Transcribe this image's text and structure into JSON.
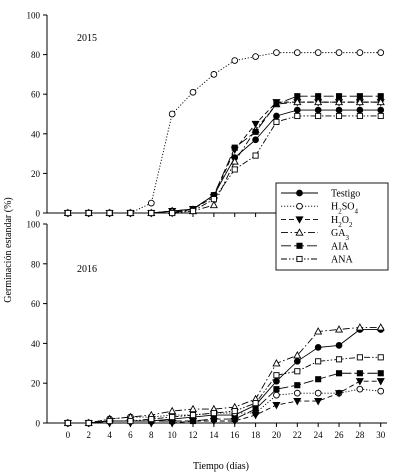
{
  "figure": {
    "ylabel": "Germinación estandar (%)",
    "xlabel": "Tiempo (días)"
  },
  "legend": {
    "placement": "right, between panels",
    "items": [
      {
        "name": "Testigo",
        "marker": "filled-circle",
        "dash": "solid"
      },
      {
        "name": "H2SO4",
        "marker": "open-circle",
        "dash": "dotted"
      },
      {
        "name": "H2O2",
        "marker": "filled-triangle-down",
        "dash": "dashed"
      },
      {
        "name": "GA3",
        "marker": "open-triangle-up",
        "dash": "dash-dot"
      },
      {
        "name": "AIA",
        "marker": "filled-square",
        "dash": "long-dash"
      },
      {
        "name": "ANA",
        "marker": "open-square",
        "dash": "dash-dot-dot"
      }
    ]
  },
  "chart_data": [
    {
      "type": "line",
      "panel_label": "2015",
      "x": [
        0,
        2,
        4,
        6,
        8,
        10,
        12,
        14,
        16,
        18,
        20,
        22,
        24,
        26,
        28,
        30
      ],
      "xticks": [
        0,
        2,
        4,
        6,
        8,
        10,
        12,
        14,
        16,
        18,
        20,
        22,
        24,
        26,
        28,
        30
      ],
      "xlim": [
        -2,
        30.6
      ],
      "ylim": [
        0,
        100
      ],
      "yticks": [
        0,
        20,
        40,
        60,
        80,
        100
      ],
      "grid": false,
      "series": [
        {
          "name": "Testigo",
          "values": [
            0,
            0,
            0,
            0,
            0,
            1,
            2,
            9,
            28,
            37,
            49,
            52,
            52,
            52,
            52,
            52
          ]
        },
        {
          "name": "H2SO4",
          "values": [
            0,
            0,
            0,
            0,
            5,
            50,
            61,
            70,
            77,
            79,
            81,
            81,
            81,
            81,
            81,
            81
          ]
        },
        {
          "name": "H2O2",
          "values": [
            0,
            0,
            0,
            0,
            0,
            1,
            2,
            8,
            32,
            45,
            56,
            56,
            56,
            56,
            56,
            56
          ]
        },
        {
          "name": "GA3",
          "values": [
            0,
            0,
            0,
            0,
            0,
            1,
            1,
            4,
            26,
            42,
            55,
            56,
            56,
            56,
            56,
            56
          ]
        },
        {
          "name": "AIA",
          "values": [
            0,
            0,
            0,
            0,
            0,
            0,
            2,
            9,
            33,
            41,
            55,
            59,
            59,
            59,
            59,
            59
          ]
        },
        {
          "name": "ANA",
          "values": [
            0,
            0,
            0,
            0,
            0,
            0,
            1,
            7,
            22,
            29,
            46,
            49,
            49,
            49,
            49,
            49
          ]
        }
      ]
    },
    {
      "type": "line",
      "panel_label": "2016",
      "x": [
        0,
        2,
        4,
        6,
        8,
        10,
        12,
        14,
        16,
        18,
        20,
        22,
        24,
        26,
        28,
        30
      ],
      "xticks": [
        0,
        2,
        4,
        6,
        8,
        10,
        12,
        14,
        16,
        18,
        20,
        22,
        24,
        26,
        28,
        30
      ],
      "xlim": [
        -2,
        30.6
      ],
      "ylim": [
        0,
        100
      ],
      "yticks": [
        0,
        20,
        40,
        60,
        80,
        100
      ],
      "grid": false,
      "series": [
        {
          "name": "Testigo",
          "values": [
            0,
            0,
            1,
            1,
            1,
            2,
            3,
            4,
            4,
            9,
            21,
            31,
            38,
            39,
            47,
            47
          ]
        },
        {
          "name": "H2SO4",
          "values": [
            0,
            0,
            2,
            3,
            3,
            4,
            4,
            5,
            5,
            5,
            14,
            15,
            15,
            15,
            17,
            16
          ]
        },
        {
          "name": "H2O2",
          "values": [
            0,
            0,
            0,
            0,
            0,
            0,
            1,
            1,
            1,
            4,
            9,
            11,
            11,
            15,
            21,
            21
          ]
        },
        {
          "name": "GA3",
          "values": [
            0,
            0,
            2,
            3,
            4,
            6,
            7,
            7,
            8,
            12,
            30,
            34,
            46,
            47,
            48,
            48
          ]
        },
        {
          "name": "AIA",
          "values": [
            0,
            0,
            1,
            1,
            1,
            1,
            1,
            2,
            2,
            7,
            17,
            19,
            22,
            25,
            25,
            25
          ]
        },
        {
          "name": "ANA",
          "values": [
            0,
            0,
            1,
            1,
            2,
            3,
            4,
            5,
            6,
            10,
            24,
            26,
            31,
            32,
            33,
            33
          ]
        }
      ]
    }
  ]
}
